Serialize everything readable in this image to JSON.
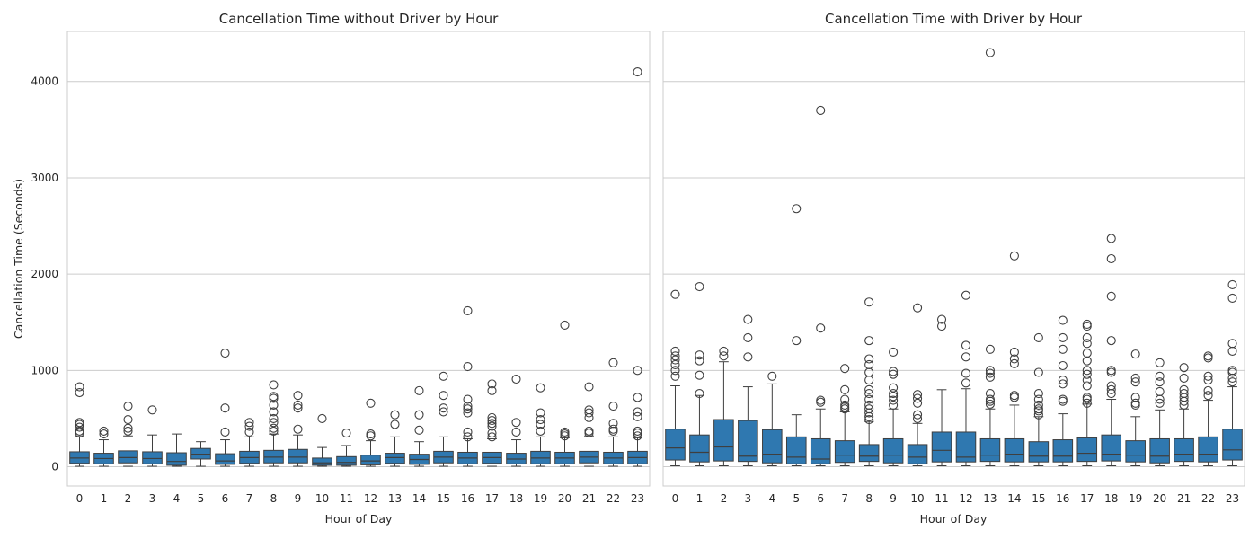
{
  "chart_data": [
    {
      "type": "box",
      "title": "Cancellation Time without Driver by Hour",
      "xlabel": "Hour of Day",
      "ylabel": "Cancellation Time (Seconds)",
      "ylim": [
        -200,
        4520
      ],
      "yticks": [
        0,
        1000,
        2000,
        3000,
        4000
      ],
      "grid": true,
      "box_color": "#2f78b0",
      "categories": [
        "0",
        "1",
        "2",
        "3",
        "4",
        "5",
        "6",
        "7",
        "8",
        "9",
        "10",
        "11",
        "12",
        "13",
        "14",
        "15",
        "16",
        "17",
        "18",
        "19",
        "20",
        "21",
        "22",
        "23"
      ],
      "boxes": [
        {
          "whislo": 5,
          "q1": 35,
          "med": 90,
          "q3": 155,
          "whishi": 315,
          "fliers": [
            350,
            370,
            410,
            440,
            460,
            770,
            830
          ]
        },
        {
          "whislo": 5,
          "q1": 30,
          "med": 85,
          "q3": 140,
          "whishi": 280,
          "fliers": [
            340,
            370
          ]
        },
        {
          "whislo": 5,
          "q1": 40,
          "med": 95,
          "q3": 165,
          "whishi": 320,
          "fliers": [
            370,
            400,
            490,
            630
          ]
        },
        {
          "whislo": 5,
          "q1": 30,
          "med": 85,
          "q3": 155,
          "whishi": 330,
          "fliers": [
            590
          ]
        },
        {
          "whislo": 5,
          "q1": 15,
          "med": 55,
          "q3": 145,
          "whishi": 340,
          "fliers": []
        },
        {
          "whislo": 5,
          "q1": 80,
          "med": 130,
          "q3": 190,
          "whishi": 260,
          "fliers": []
        },
        {
          "whislo": 5,
          "q1": 25,
          "med": 60,
          "q3": 135,
          "whishi": 280,
          "fliers": [
            360,
            610,
            1180
          ]
        },
        {
          "whislo": 5,
          "q1": 35,
          "med": 95,
          "q3": 160,
          "whishi": 310,
          "fliers": [
            360,
            420,
            460
          ]
        },
        {
          "whislo": 5,
          "q1": 40,
          "med": 100,
          "q3": 170,
          "whishi": 340,
          "fliers": [
            370,
            400,
            460,
            500,
            570,
            640,
            710,
            730,
            850
          ]
        },
        {
          "whislo": 5,
          "q1": 40,
          "med": 100,
          "q3": 180,
          "whishi": 330,
          "fliers": [
            390,
            610,
            640,
            740
          ]
        },
        {
          "whislo": 5,
          "q1": 15,
          "med": 40,
          "q3": 90,
          "whishi": 200,
          "fliers": [
            500
          ]
        },
        {
          "whislo": 5,
          "q1": 15,
          "med": 45,
          "q3": 105,
          "whishi": 220,
          "fliers": [
            350
          ]
        },
        {
          "whislo": 5,
          "q1": 20,
          "med": 60,
          "q3": 120,
          "whishi": 270,
          "fliers": [
            320,
            340,
            660
          ]
        },
        {
          "whislo": 5,
          "q1": 35,
          "med": 95,
          "q3": 140,
          "whishi": 310,
          "fliers": [
            440,
            540
          ]
        },
        {
          "whislo": 5,
          "q1": 25,
          "med": 75,
          "q3": 130,
          "whishi": 260,
          "fliers": [
            380,
            540,
            790
          ]
        },
        {
          "whislo": 5,
          "q1": 40,
          "med": 100,
          "q3": 160,
          "whishi": 310,
          "fliers": [
            570,
            610,
            740,
            940
          ]
        },
        {
          "whislo": 5,
          "q1": 30,
          "med": 90,
          "q3": 150,
          "whishi": 290,
          "fliers": [
            310,
            360,
            560,
            600,
            630,
            700,
            1040,
            1620
          ]
        },
        {
          "whislo": 5,
          "q1": 35,
          "med": 95,
          "q3": 150,
          "whishi": 290,
          "fliers": [
            310,
            350,
            420,
            450,
            480,
            510,
            790,
            860
          ]
        },
        {
          "whislo": 5,
          "q1": 30,
          "med": 80,
          "q3": 140,
          "whishi": 280,
          "fliers": [
            360,
            460,
            910
          ]
        },
        {
          "whislo": 5,
          "q1": 30,
          "med": 90,
          "q3": 160,
          "whishi": 310,
          "fliers": [
            370,
            440,
            490,
            560,
            820
          ]
        },
        {
          "whislo": 5,
          "q1": 30,
          "med": 90,
          "q3": 150,
          "whishi": 300,
          "fliers": [
            320,
            340,
            360,
            1470
          ]
        },
        {
          "whislo": 5,
          "q1": 40,
          "med": 100,
          "q3": 160,
          "whishi": 320,
          "fliers": [
            350,
            370,
            510,
            560,
            590,
            830
          ]
        },
        {
          "whislo": 5,
          "q1": 30,
          "med": 90,
          "q3": 150,
          "whishi": 310,
          "fliers": [
            370,
            390,
            450,
            630,
            1080
          ]
        },
        {
          "whislo": 5,
          "q1": 30,
          "med": 95,
          "q3": 160,
          "whishi": 300,
          "fliers": [
            320,
            350,
            370,
            520,
            570,
            720,
            1000,
            4100
          ]
        }
      ]
    },
    {
      "type": "box",
      "title": "Cancellation Time with Driver by Hour",
      "xlabel": "Hour of Day",
      "ylabel": "",
      "ylim": [
        -200,
        4520
      ],
      "yticks": [
        0,
        1000,
        2000,
        3000,
        4000
      ],
      "grid": true,
      "shared_y": true,
      "box_color": "#2f78b0",
      "categories": [
        "0",
        "1",
        "2",
        "3",
        "4",
        "5",
        "6",
        "7",
        "8",
        "9",
        "10",
        "11",
        "12",
        "13",
        "14",
        "15",
        "16",
        "17",
        "18",
        "19",
        "20",
        "21",
        "22",
        "23"
      ],
      "boxes": [
        {
          "whislo": 10,
          "q1": 70,
          "med": 195,
          "q3": 390,
          "whishi": 840,
          "fliers": [
            940,
            1000,
            1060,
            1110,
            1150,
            1200,
            1790
          ]
        },
        {
          "whislo": 10,
          "q1": 50,
          "med": 150,
          "q3": 330,
          "whishi": 740,
          "fliers": [
            760,
            950,
            1100,
            1160,
            1870
          ]
        },
        {
          "whislo": 10,
          "q1": 60,
          "med": 205,
          "q3": 490,
          "whishi": 1090,
          "fliers": [
            1150,
            1200
          ]
        },
        {
          "whislo": 10,
          "q1": 55,
          "med": 110,
          "q3": 480,
          "whishi": 830,
          "fliers": [
            1140,
            1340,
            1530
          ]
        },
        {
          "whislo": 10,
          "q1": 40,
          "med": 130,
          "q3": 385,
          "whishi": 860,
          "fliers": [
            940
          ]
        },
        {
          "whislo": 10,
          "q1": 30,
          "med": 100,
          "q3": 310,
          "whishi": 540,
          "fliers": [
            1310,
            2680
          ]
        },
        {
          "whislo": 10,
          "q1": 30,
          "med": 80,
          "q3": 290,
          "whishi": 600,
          "fliers": [
            670,
            690,
            1440,
            3700
          ]
        },
        {
          "whislo": 10,
          "q1": 45,
          "med": 120,
          "q3": 270,
          "whishi": 570,
          "fliers": [
            600,
            620,
            640,
            700,
            800,
            1020
          ]
        },
        {
          "whislo": 10,
          "q1": 55,
          "med": 110,
          "q3": 230,
          "whishi": 470,
          "fliers": [
            490,
            520,
            560,
            600,
            640,
            700,
            760,
            800,
            900,
            980,
            1060,
            1120,
            1310,
            1710
          ]
        },
        {
          "whislo": 10,
          "q1": 40,
          "med": 120,
          "q3": 290,
          "whishi": 600,
          "fliers": [
            640,
            690,
            730,
            760,
            820,
            960,
            990,
            1190
          ]
        },
        {
          "whislo": 10,
          "q1": 30,
          "med": 100,
          "q3": 230,
          "whishi": 450,
          "fliers": [
            500,
            540,
            660,
            710,
            750,
            1650
          ]
        },
        {
          "whislo": 10,
          "q1": 50,
          "med": 170,
          "q3": 360,
          "whishi": 800,
          "fliers": [
            1460,
            1530
          ]
        },
        {
          "whislo": 10,
          "q1": 50,
          "med": 100,
          "q3": 360,
          "whishi": 810,
          "fliers": [
            870,
            970,
            1140,
            1260,
            1780
          ]
        },
        {
          "whislo": 10,
          "q1": 55,
          "med": 120,
          "q3": 290,
          "whishi": 600,
          "fliers": [
            650,
            680,
            700,
            760,
            930,
            970,
            1000,
            1220,
            4300
          ]
        },
        {
          "whislo": 10,
          "q1": 50,
          "med": 130,
          "q3": 290,
          "whishi": 640,
          "fliers": [
            720,
            740,
            1070,
            1120,
            1190,
            2190
          ]
        },
        {
          "whislo": 10,
          "q1": 50,
          "med": 110,
          "q3": 260,
          "whishi": 520,
          "fliers": [
            540,
            580,
            600,
            640,
            700,
            760,
            980,
            1340
          ]
        },
        {
          "whislo": 10,
          "q1": 50,
          "med": 110,
          "q3": 280,
          "whishi": 550,
          "fliers": [
            680,
            700,
            860,
            900,
            1050,
            1220,
            1340,
            1520
          ]
        },
        {
          "whislo": 10,
          "q1": 55,
          "med": 140,
          "q3": 300,
          "whishi": 650,
          "fliers": [
            660,
            700,
            720,
            840,
            900,
            960,
            1000,
            1100,
            1180,
            1280,
            1340,
            1460,
            1480
          ]
        },
        {
          "whislo": 10,
          "q1": 60,
          "med": 130,
          "q3": 330,
          "whishi": 700,
          "fliers": [
            760,
            800,
            840,
            980,
            1000,
            1310,
            1770,
            2160,
            2370
          ]
        },
        {
          "whislo": 10,
          "q1": 50,
          "med": 120,
          "q3": 270,
          "whishi": 520,
          "fliers": [
            640,
            660,
            720,
            880,
            920,
            1170
          ]
        },
        {
          "whislo": 10,
          "q1": 40,
          "med": 110,
          "q3": 290,
          "whishi": 590,
          "fliers": [
            660,
            700,
            780,
            880,
            940,
            1080
          ]
        },
        {
          "whislo": 10,
          "q1": 55,
          "med": 130,
          "q3": 290,
          "whishi": 600,
          "fliers": [
            640,
            680,
            720,
            760,
            800,
            920,
            1030
          ]
        },
        {
          "whislo": 10,
          "q1": 50,
          "med": 130,
          "q3": 310,
          "whishi": 690,
          "fliers": [
            740,
            790,
            900,
            940,
            1130,
            1150
          ]
        },
        {
          "whislo": 10,
          "q1": 70,
          "med": 175,
          "q3": 390,
          "whishi": 830,
          "fliers": [
            880,
            920,
            980,
            1000,
            1200,
            1280,
            1750,
            1890
          ]
        }
      ]
    }
  ]
}
